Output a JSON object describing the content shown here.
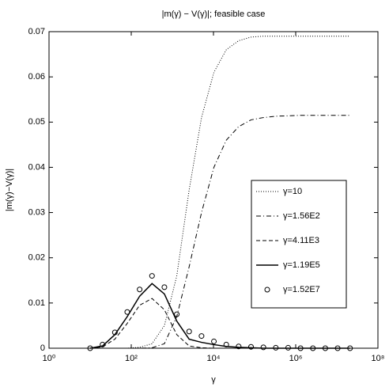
{
  "chart_data": {
    "type": "line",
    "title": "|m(γ) − V(γ)|; feasible case",
    "xlabel": "γ",
    "ylabel": "|m(γ)−V(γ)|",
    "xscale": "log",
    "xlim": [
      1,
      100000000
    ],
    "xticks": [
      {
        "value": 1,
        "label": "10⁰"
      },
      {
        "value": 100,
        "label": "10²"
      },
      {
        "value": 10000,
        "label": "10⁴"
      },
      {
        "value": 1000000,
        "label": "10⁶"
      },
      {
        "value": 100000000,
        "label": "10⁸"
      }
    ],
    "ylim": [
      0,
      0.07
    ],
    "yticks": [
      0,
      0.01,
      0.02,
      0.03,
      0.04,
      0.05,
      0.06,
      0.07
    ],
    "grid": false,
    "legend": "right",
    "x": [
      10,
      20,
      40,
      80,
      160,
      320,
      640,
      1280,
      2560,
      5120,
      10240,
      20480,
      40960,
      81920,
      163840,
      327680,
      655360,
      1310720,
      2621440,
      5242880,
      10485760,
      20971520
    ],
    "series": [
      {
        "name": "γ=10",
        "color": "#000000",
        "style": "dotted",
        "values": [
          0,
          0,
          0,
          0,
          0.0002,
          0.001,
          0.005,
          0.016,
          0.035,
          0.051,
          0.061,
          0.066,
          0.068,
          0.0688,
          0.069,
          0.069,
          0.069,
          0.069,
          0.069,
          0.069,
          0.069,
          0.069
        ]
      },
      {
        "name": "γ=1.56E2",
        "color": "#000000",
        "style": "dashdot",
        "values": [
          0,
          0,
          0,
          0,
          0,
          0.0001,
          0.001,
          0.007,
          0.018,
          0.03,
          0.04,
          0.046,
          0.049,
          0.0505,
          0.051,
          0.0513,
          0.0514,
          0.0515,
          0.0515,
          0.0515,
          0.0515,
          0.0515
        ]
      },
      {
        "name": "γ=4.11E3",
        "color": "#000000",
        "style": "dashed",
        "values": [
          0,
          0.0003,
          0.002,
          0.0055,
          0.0095,
          0.011,
          0.0085,
          0.003,
          0.0005,
          0.0001,
          0,
          0,
          0,
          0,
          0,
          0,
          0,
          0,
          0,
          0,
          0,
          0
        ]
      },
      {
        "name": "γ=1.19E5",
        "color": "#000000",
        "style": "solid",
        "values": [
          0,
          0.0005,
          0.003,
          0.007,
          0.0115,
          0.0143,
          0.012,
          0.006,
          0.002,
          0.0013,
          0.0008,
          0.0004,
          0.0002,
          0.0001,
          0,
          0,
          0,
          0,
          0,
          0,
          0,
          0
        ]
      },
      {
        "name": "γ=1.52E7",
        "color": "#000000",
        "style": "circles",
        "values": [
          0,
          0.0008,
          0.0035,
          0.008,
          0.013,
          0.016,
          0.0135,
          0.0075,
          0.0037,
          0.0027,
          0.0015,
          0.0008,
          0.0004,
          0.0003,
          0.0002,
          0.0001,
          0.0001,
          0,
          0,
          0,
          0,
          0
        ]
      }
    ]
  }
}
